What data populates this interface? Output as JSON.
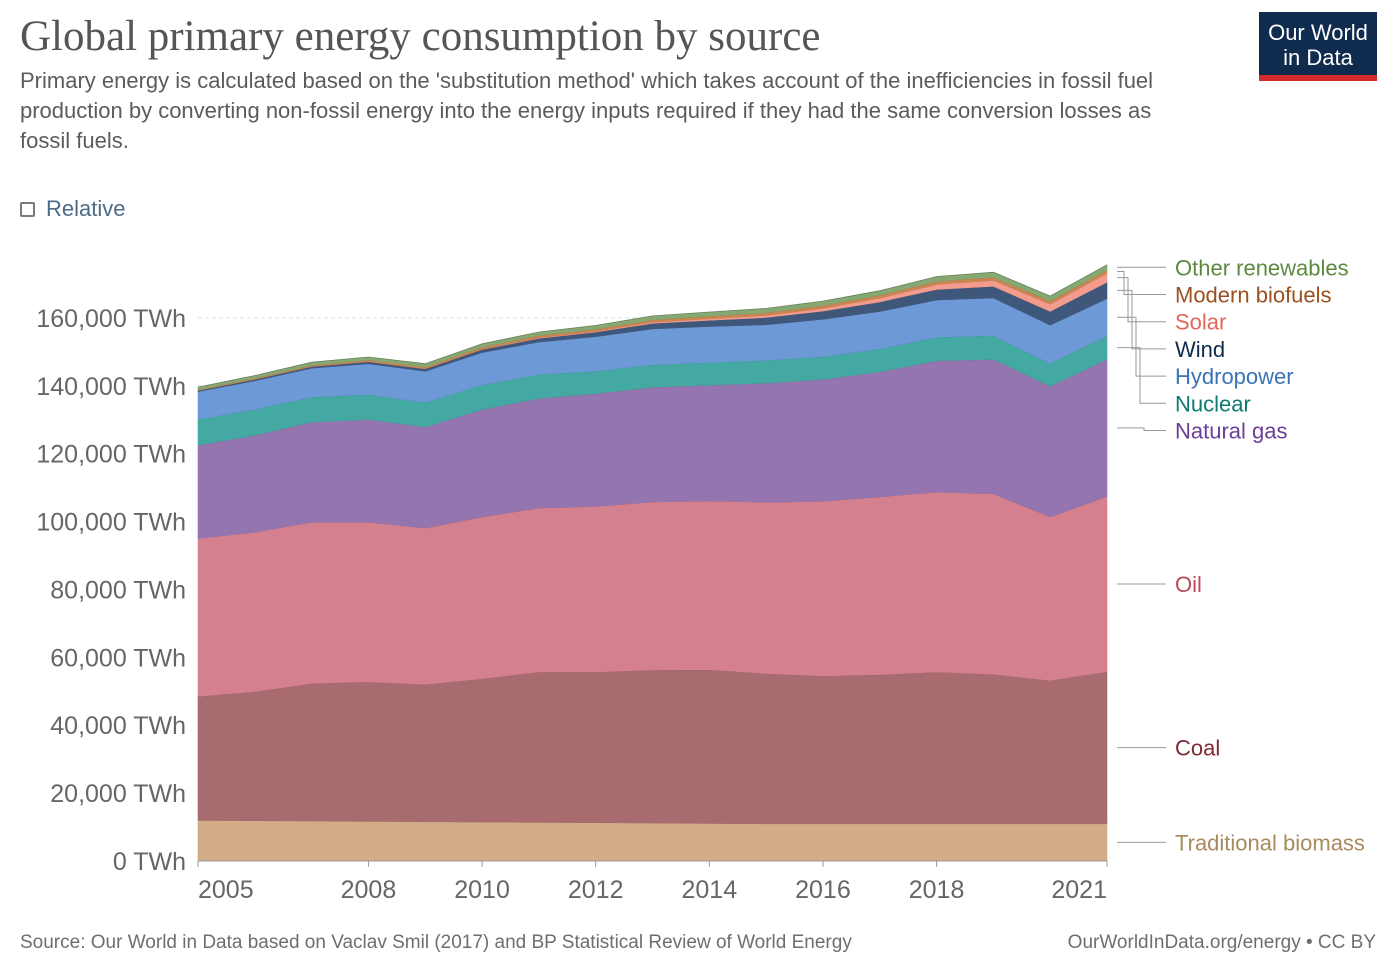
{
  "title": "Global primary energy consumption by source",
  "subtitle": "Primary energy is calculated based on the 'substitution method' which takes account of the inefficiencies in fossil fuel production by converting non-fossil energy into the energy inputs required if they had the same conversion losses as fossil fuels.",
  "logo": {
    "line1": "Our World",
    "line2": "in Data"
  },
  "relative_toggle": {
    "label": "Relative",
    "checked": false
  },
  "footer": {
    "source": "Source: Our World in Data based on Vaclav Smil (2017) and BP Statistical Review of World Energy",
    "credit": "OurWorldInData.org/energy • CC BY"
  },
  "chart_data": {
    "type": "area",
    "stacked": true,
    "x": [
      2005,
      2006,
      2007,
      2008,
      2009,
      2010,
      2011,
      2012,
      2013,
      2014,
      2015,
      2016,
      2017,
      2018,
      2019,
      2020,
      2021
    ],
    "xticks": [
      2005,
      2008,
      2010,
      2012,
      2014,
      2016,
      2018,
      2021
    ],
    "ylim": [
      0,
      180000
    ],
    "yticks": [
      0,
      20000,
      40000,
      60000,
      80000,
      100000,
      120000,
      140000,
      160000
    ],
    "ytick_labels": [
      "0 TWh",
      "20,000 TWh",
      "40,000 TWh",
      "60,000 TWh",
      "80,000 TWh",
      "100,000 TWh",
      "120,000 TWh",
      "140,000 TWh",
      "160,000 TWh"
    ],
    "gridlines": true,
    "legend_position": "right",
    "series": [
      {
        "name": "Traditional biomass",
        "color": "#d1ac86",
        "label_color": "#a98a5e",
        "values": [
          12000,
          11900,
          11800,
          11700,
          11600,
          11500,
          11400,
          11300,
          11200,
          11100,
          11000,
          11000,
          11000,
          11000,
          11000,
          11000,
          11000
        ]
      },
      {
        "name": "Coal",
        "color": "#a76b70",
        "label_color": "#7d2a33",
        "values": [
          36500,
          38000,
          40500,
          41100,
          40400,
          42200,
          44300,
          44400,
          45100,
          45300,
          44200,
          43500,
          43900,
          44700,
          44000,
          42200,
          44800
        ]
      },
      {
        "name": "Oil",
        "color": "#d4808e",
        "label_color": "#c0475a",
        "values": [
          46500,
          47000,
          47500,
          47000,
          46100,
          47700,
          48300,
          48800,
          49500,
          49700,
          50500,
          51500,
          52400,
          53000,
          53200,
          48200,
          51600
        ]
      },
      {
        "name": "Natural gas",
        "color": "#9575b0",
        "label_color": "#6b3e96",
        "values": [
          27500,
          28500,
          29500,
          30300,
          29800,
          31600,
          32300,
          33200,
          33800,
          34100,
          35100,
          35900,
          36800,
          38700,
          39600,
          38500,
          40400
        ]
      },
      {
        "name": "Nuclear",
        "color": "#44a8a3",
        "label_color": "#0d7b74",
        "values": [
          7600,
          7600,
          7400,
          7300,
          7200,
          7300,
          7000,
          6600,
          6600,
          6700,
          6700,
          6700,
          6800,
          6900,
          7000,
          6700,
          6900
        ]
      },
      {
        "name": "Hydropower",
        "color": "#6d99d6",
        "label_color": "#3b73b8",
        "values": [
          8200,
          8500,
          8500,
          9100,
          9200,
          9500,
          9600,
          10200,
          10600,
          10600,
          10500,
          11000,
          11000,
          11000,
          11100,
          11300,
          11000
        ]
      },
      {
        "name": "Wind",
        "color": "#40577c",
        "label_color": "#0f2b4d",
        "values": [
          300,
          400,
          500,
          600,
          700,
          900,
          1100,
          1300,
          1600,
          1800,
          2100,
          2400,
          2800,
          3100,
          3400,
          4000,
          4800
        ]
      },
      {
        "name": "Solar",
        "color": "#f39b8c",
        "label_color": "#e0675a",
        "values": [
          10,
          15,
          20,
          30,
          50,
          80,
          150,
          250,
          350,
          480,
          650,
          850,
          1150,
          1500,
          1800,
          2200,
          2700
        ]
      },
      {
        "name": "Modern biofuels",
        "color": "#c98650",
        "label_color": "#9c4f1f",
        "values": [
          200,
          280,
          350,
          450,
          500,
          600,
          650,
          650,
          700,
          750,
          800,
          800,
          820,
          880,
          930,
          900,
          950
        ]
      },
      {
        "name": "Other renewables",
        "color": "#86a873",
        "label_color": "#5b8a3e",
        "values": [
          800,
          840,
          880,
          900,
          940,
          1000,
          1050,
          1100,
          1150,
          1200,
          1260,
          1300,
          1350,
          1400,
          1430,
          1450,
          1500
        ]
      }
    ]
  }
}
